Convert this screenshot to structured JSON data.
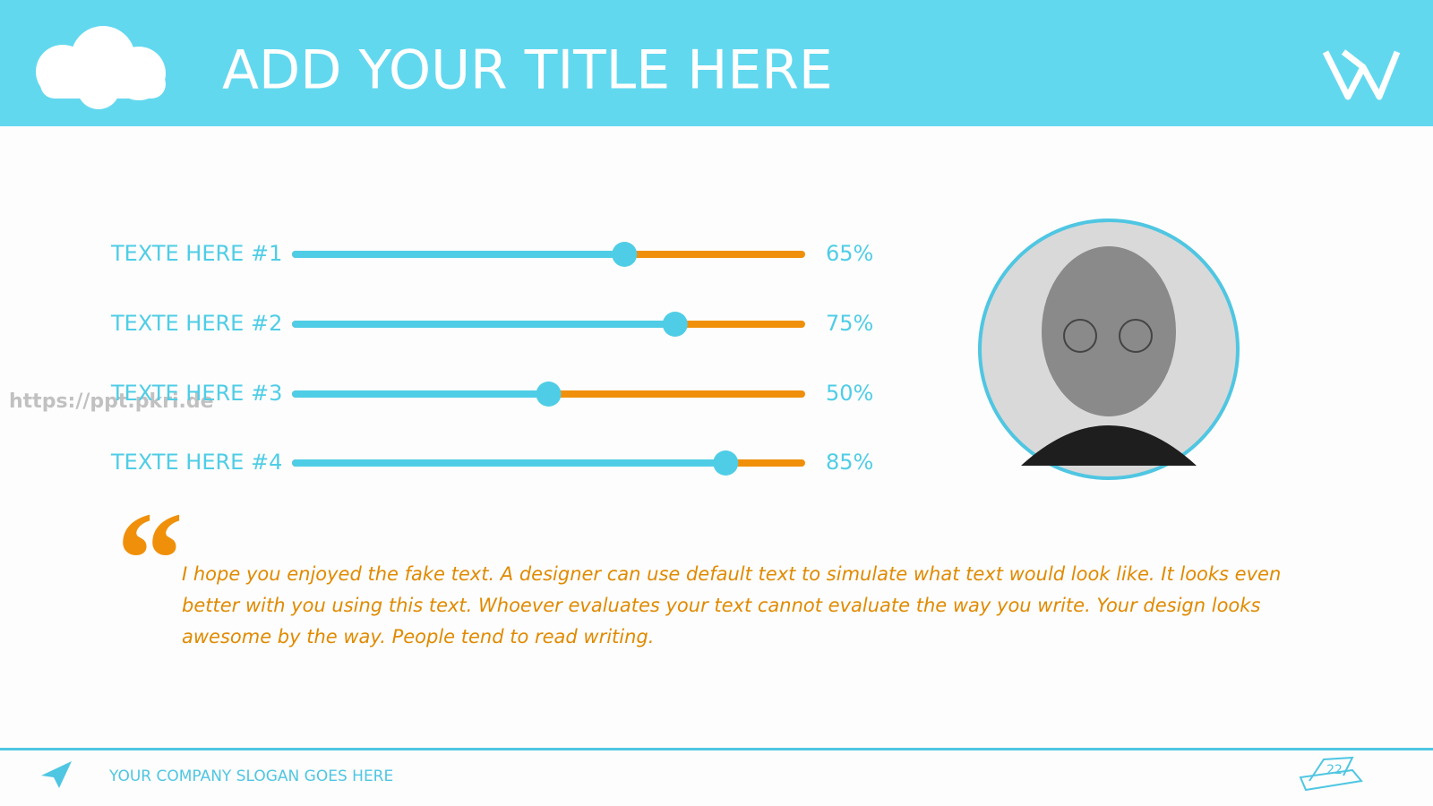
{
  "header": {
    "title": "ADD YOUR TITLE HERE"
  },
  "skills": [
    {
      "label": "TEXTE HERE #1",
      "value": 65,
      "value_label": "65%"
    },
    {
      "label": "TEXTE HERE #2",
      "value": 75,
      "value_label": "75%"
    },
    {
      "label": "TEXTE HERE #3",
      "value": 50,
      "value_label": "50%"
    },
    {
      "label": "TEXTE HERE #4",
      "value": 85,
      "value_label": "85%"
    }
  ],
  "quote": {
    "lines": [
      "I hope you enjoyed the fake text. A designer can use default text to simulate what text would look like. It looks even",
      "better with you using this text. Whoever evaluates your text cannot evaluate the way you write. Your design looks",
      "awesome by the way. People tend to read writing."
    ]
  },
  "watermark": "https://ppt.pkri.de",
  "footer": {
    "slogan": "YOUR COMPANY SLOGAN GOES HERE",
    "page_number": "22"
  }
}
